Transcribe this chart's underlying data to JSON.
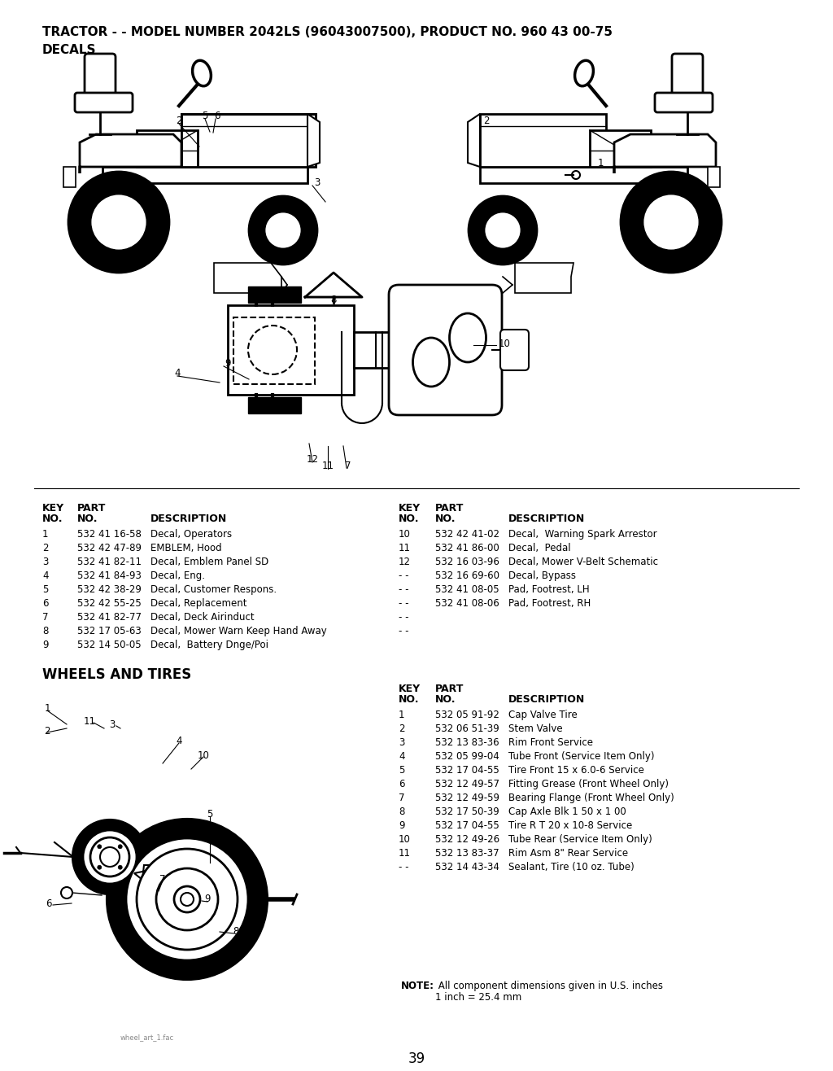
{
  "title_line1": "TRACTOR - - MODEL NUMBER 2042LS (96043007500), PRODUCT NO. 960 43 00-75",
  "title_line2": "DECALS",
  "section2_title": "WHEELS AND TIRES",
  "page_number": "39",
  "bg_color": "#ffffff",
  "text_color": "#000000",
  "decals_left_rows": [
    [
      "1",
      "532 41 16-58",
      "Decal, Operators"
    ],
    [
      "2",
      "532 42 47-89",
      "EMBLEM, Hood"
    ],
    [
      "3",
      "532 41 82-11",
      "Decal, Emblem Panel SD"
    ],
    [
      "4",
      "532 41 84-93",
      "Decal, Eng."
    ],
    [
      "5",
      "532 42 38-29",
      "Decal, Customer Respons."
    ],
    [
      "6",
      "532 42 55-25",
      "Decal, Replacement"
    ],
    [
      "7",
      "532 41 82-77",
      "Decal, Deck Airinduct"
    ],
    [
      "8",
      "532 17 05-63",
      "Decal, Mower Warn Keep Hand Away"
    ],
    [
      "9",
      "532 14 50-05",
      "Decal,  Battery Dnge/Poi"
    ]
  ],
  "decals_right_rows": [
    [
      "10",
      "532 42 41-02",
      "Decal,  Warning Spark Arrestor"
    ],
    [
      "11",
      "532 41 86-00",
      "Decal,  Pedal"
    ],
    [
      "12",
      "532 16 03-96",
      "Decal, Mower V-Belt Schematic"
    ],
    [
      "- -",
      "532 16 69-60",
      "Decal, Bypass"
    ],
    [
      "- -",
      "532 41 08-05",
      "Pad, Footrest, LH"
    ],
    [
      "- -",
      "532 41 08-06",
      "Pad, Footrest, RH"
    ],
    [
      "- -",
      "",
      ""
    ],
    [
      "- -",
      "",
      ""
    ]
  ],
  "wheels_rows": [
    [
      "1",
      "532 05 91-92",
      "Cap Valve Tire"
    ],
    [
      "2",
      "532 06 51-39",
      "Stem Valve"
    ],
    [
      "3",
      "532 13 83-36",
      "Rim Front Service"
    ],
    [
      "4",
      "532 05 99-04",
      "Tube Front (Service Item Only)"
    ],
    [
      "5",
      "532 17 04-55",
      "Tire Front 15 x 6.0-6 Service"
    ],
    [
      "6",
      "532 12 49-57",
      "Fitting Grease (Front Wheel Only)"
    ],
    [
      "7",
      "532 12 49-59",
      "Bearing Flange (Front Wheel Only)"
    ],
    [
      "8",
      "532 17 50-39",
      "Cap Axle Blk 1 50 x 1 00"
    ],
    [
      "9",
      "532 17 04-55",
      "Tire R T 20 x 10-8 Service"
    ],
    [
      "10",
      "532 12 49-26",
      "Tube Rear (Service Item Only)"
    ],
    [
      "11",
      "532 13 83-37",
      "Rim Asm 8\" Rear Service"
    ],
    [
      "- -",
      "532 14 43-34",
      "Sealant, Tire (10 oz. Tube)"
    ]
  ],
  "watermark": "wheel_art_1.fac"
}
